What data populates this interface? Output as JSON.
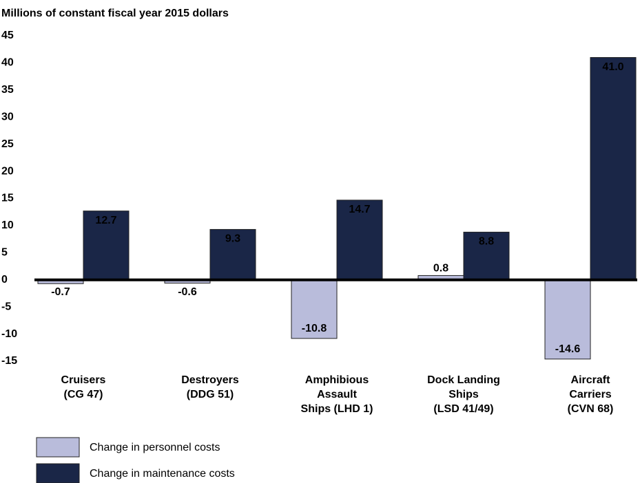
{
  "chart_data": {
    "type": "bar",
    "title": "Millions of constant fiscal year 2015 dollars",
    "categories": [
      [
        "Cruisers",
        "(CG 47)"
      ],
      [
        "Destroyers",
        "(DDG 51)"
      ],
      [
        "Amphibious",
        "Assault",
        "Ships (LHD 1)"
      ],
      [
        "Dock Landing",
        "Ships",
        "(LSD 41/49)"
      ],
      [
        "Aircraft",
        "Carriers",
        "(CVN 68)"
      ]
    ],
    "series": [
      {
        "name": "Change in personnel costs",
        "color": "#b9bcdb",
        "values": [
          -0.7,
          -0.6,
          -10.8,
          0.8,
          -14.6
        ]
      },
      {
        "name": "Change in maintenance costs",
        "color": "#1a2647",
        "values": [
          12.7,
          9.3,
          14.7,
          8.8,
          41.0
        ],
        "value_labels": [
          "12.7",
          "9.3",
          "14.7",
          "8.8",
          "41.0"
        ]
      }
    ],
    "ylim": [
      -15,
      45
    ],
    "yticks": [
      -15,
      -10,
      -5,
      0,
      5,
      10,
      15,
      20,
      25,
      30,
      35,
      40,
      45
    ],
    "grid": false,
    "legend": "bottom"
  }
}
